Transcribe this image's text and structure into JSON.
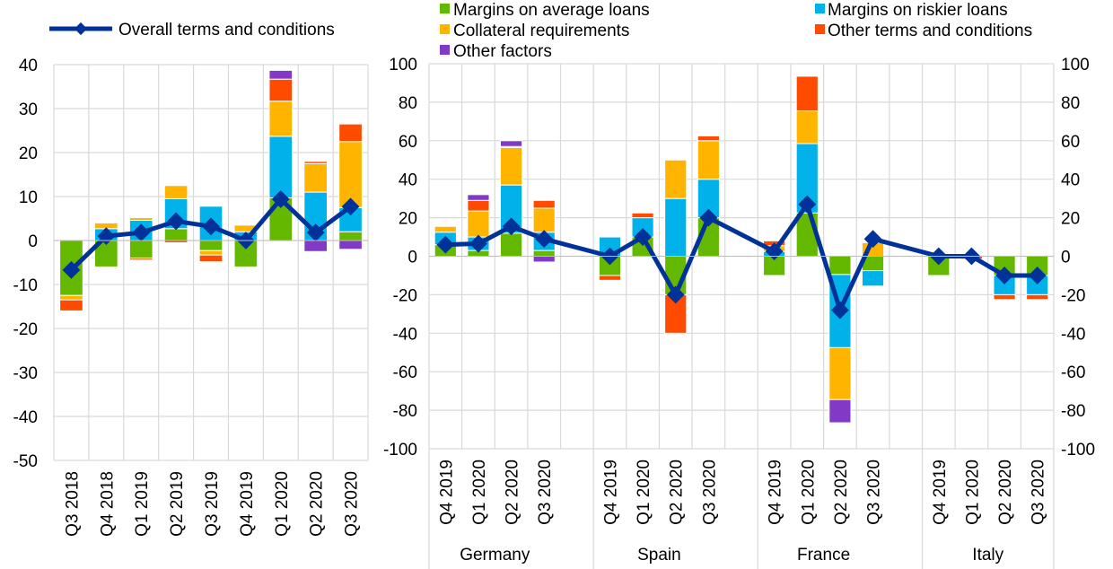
{
  "colors": {
    "green": "#65b800",
    "blue": "#00b1ea",
    "yellow": "#ffb400",
    "red": "#ff4b00",
    "purple": "#8139c6",
    "line": "#003299",
    "grid": "#d9d9d9"
  },
  "legend": {
    "overall": "Overall terms and conditions",
    "items": [
      "Margins on average loans",
      "Margins on riskier loans",
      "Collateral requirements",
      "Other terms and conditions",
      "Other factors"
    ]
  },
  "chart_data": [
    {
      "type": "bar",
      "stacked": true,
      "title": "",
      "ylim": [
        -50,
        40
      ],
      "yticks": [
        40,
        30,
        20,
        10,
        0,
        -10,
        -20,
        -30,
        -40,
        -50
      ],
      "categories": [
        "Q3 2018",
        "Q4 2018",
        "Q1 2019",
        "Q2 2019",
        "Q3 2019",
        "Q4 2019",
        "Q1 2020",
        "Q2 2020",
        "Q3 2020"
      ],
      "series": [
        {
          "name": "Margins on average loans",
          "values": [
            -12.5,
            -6,
            -4,
            2.7,
            -2.3,
            -6,
            9.7,
            0,
            2
          ]
        },
        {
          "name": "Margins on riskier loans",
          "values": [
            0,
            2.7,
            4.6,
            6.8,
            7.8,
            2,
            14,
            11,
            5.5
          ]
        },
        {
          "name": "Collateral requirements",
          "values": [
            -1,
            1.3,
            0.6,
            3,
            -1,
            1.5,
            8,
            6.5,
            15
          ]
        },
        {
          "name": "Other terms and conditions",
          "values": [
            -2.5,
            0,
            -0.4,
            -0.5,
            -1.5,
            0,
            5,
            0.5,
            4
          ]
        },
        {
          "name": "Other factors",
          "values": [
            0,
            0,
            0,
            0,
            0,
            0,
            2,
            -2.5,
            -2
          ]
        }
      ],
      "line": {
        "name": "Overall terms and conditions",
        "values": [
          -6.7,
          1,
          1.8,
          4.4,
          3.2,
          0,
          9.4,
          1.8,
          7.7
        ]
      }
    },
    {
      "type": "bar",
      "stacked": true,
      "title": "",
      "ylim": [
        -100,
        100
      ],
      "yticks": [
        100,
        80,
        60,
        40,
        20,
        0,
        -20,
        -40,
        -60,
        -80,
        -100
      ],
      "groups": [
        {
          "name": "Germany",
          "categories": [
            "Q4 2019",
            "Q1 2020",
            "Q2 2020",
            "Q3 2020"
          ],
          "series": [
            [
              6,
              3,
              12,
              3
            ],
            [
              6.5,
              7,
              25,
              9.5
            ],
            [
              3,
              13.5,
              19.5,
              12.5
            ],
            [
              0,
              5.5,
              0.5,
              4
            ],
            [
              0,
              3,
              3,
              -3
            ]
          ],
          "line": [
            6,
            6.5,
            15.5,
            9
          ]
        },
        {
          "name": "Spain",
          "categories": [
            "Q4 2019",
            "Q1 2020",
            "Q2 2020",
            "Q3 2020"
          ],
          "series": [
            [
              -10,
              10,
              -20,
              20
            ],
            [
              10,
              10,
              30,
              20
            ],
            [
              0,
              0,
              20,
              20
            ],
            [
              -2.5,
              2.5,
              -20,
              2.5
            ],
            [
              0,
              0,
              0,
              0
            ]
          ],
          "line": [
            0,
            10,
            -20,
            20
          ]
        },
        {
          "name": "France",
          "categories": [
            "Q4 2019",
            "Q1 2020",
            "Q2 2020",
            "Q3 2020"
          ],
          "series": [
            [
              -10,
              22.5,
              -9.5,
              -7.5
            ],
            [
              2.5,
              36,
              -38,
              -8
            ],
            [
              3,
              17,
              -27,
              7
            ],
            [
              2.5,
              18,
              0,
              0
            ],
            [
              0,
              0,
              -12,
              0
            ]
          ],
          "line": [
            2.5,
            27,
            -28,
            9
          ]
        },
        {
          "name": "Italy",
          "categories": [
            "Q4 2019",
            "Q1 2020",
            "Q2 2020",
            "Q3 2020"
          ],
          "series": [
            [
              -10,
              0,
              -10,
              -10
            ],
            [
              0,
              0,
              -10,
              -10
            ],
            [
              0,
              0,
              0,
              0
            ],
            [
              0,
              -1.5,
              -2.5,
              -2.5
            ],
            [
              0,
              0,
              0,
              0
            ]
          ],
          "line": [
            0,
            0,
            -10,
            -10
          ]
        }
      ]
    }
  ]
}
